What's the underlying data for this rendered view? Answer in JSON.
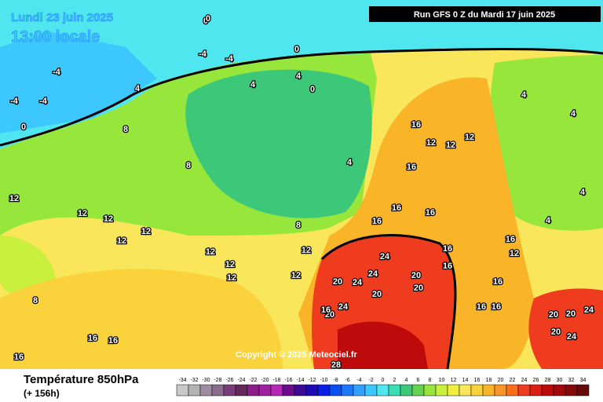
{
  "header": {
    "date": "Lundi 23 juin 2025",
    "time": "13:00 locale",
    "run": "Run GFS 0 Z du Mardi 17 juin 2025"
  },
  "footer": {
    "title": "Température 850hPa",
    "lead": "(+ 156h)",
    "copyright": "Copyright © 2025 Meteociel.fr"
  },
  "legend": {
    "values": [
      -34,
      -32,
      -30,
      -28,
      -26,
      -24,
      -22,
      -20,
      -18,
      -16,
      -14,
      -12,
      -10,
      -8,
      -6,
      -4,
      -2,
      0,
      2,
      4,
      6,
      8,
      10,
      12,
      14,
      16,
      18,
      20,
      22,
      24,
      26,
      28,
      30,
      32,
      34
    ],
    "colors": [
      "#c8c8c8",
      "#b4b4b4",
      "#a08ca0",
      "#8c6e8c",
      "#783c78",
      "#64285a",
      "#8c1e8c",
      "#a01ea0",
      "#b428b4",
      "#6e0a8c",
      "#3c0a96",
      "#1e0ab4",
      "#0a1ee6",
      "#0a50f0",
      "#1e78ff",
      "#32a0ff",
      "#3cc8ff",
      "#50e6f0",
      "#3cdcb4",
      "#3cc878",
      "#64d250",
      "#96e63c",
      "#c8f03c",
      "#f0f03c",
      "#fae65a",
      "#fad23c",
      "#fab428",
      "#fa9628",
      "#fa6e1e",
      "#f03c1e",
      "#dc1e14",
      "#be0a0a",
      "#a00a0a",
      "#820a0a",
      "#640a0a"
    ]
  },
  "contour_labels": [
    0,
    0,
    -4,
    -4,
    -4,
    -4,
    -4,
    0,
    0,
    4,
    4,
    4,
    8,
    8,
    8,
    12,
    12,
    12,
    12,
    12,
    12,
    12,
    12,
    12,
    12,
    16,
    16,
    16,
    16,
    16,
    16,
    16,
    12,
    12,
    12,
    4,
    4,
    4,
    4,
    4,
    24,
    24,
    20,
    20,
    24,
    20,
    24,
    20,
    20,
    16,
    16,
    16,
    12,
    16,
    16,
    20,
    20,
    24,
    24,
    20,
    28,
    16,
    16,
    16,
    8,
    0
  ]
}
